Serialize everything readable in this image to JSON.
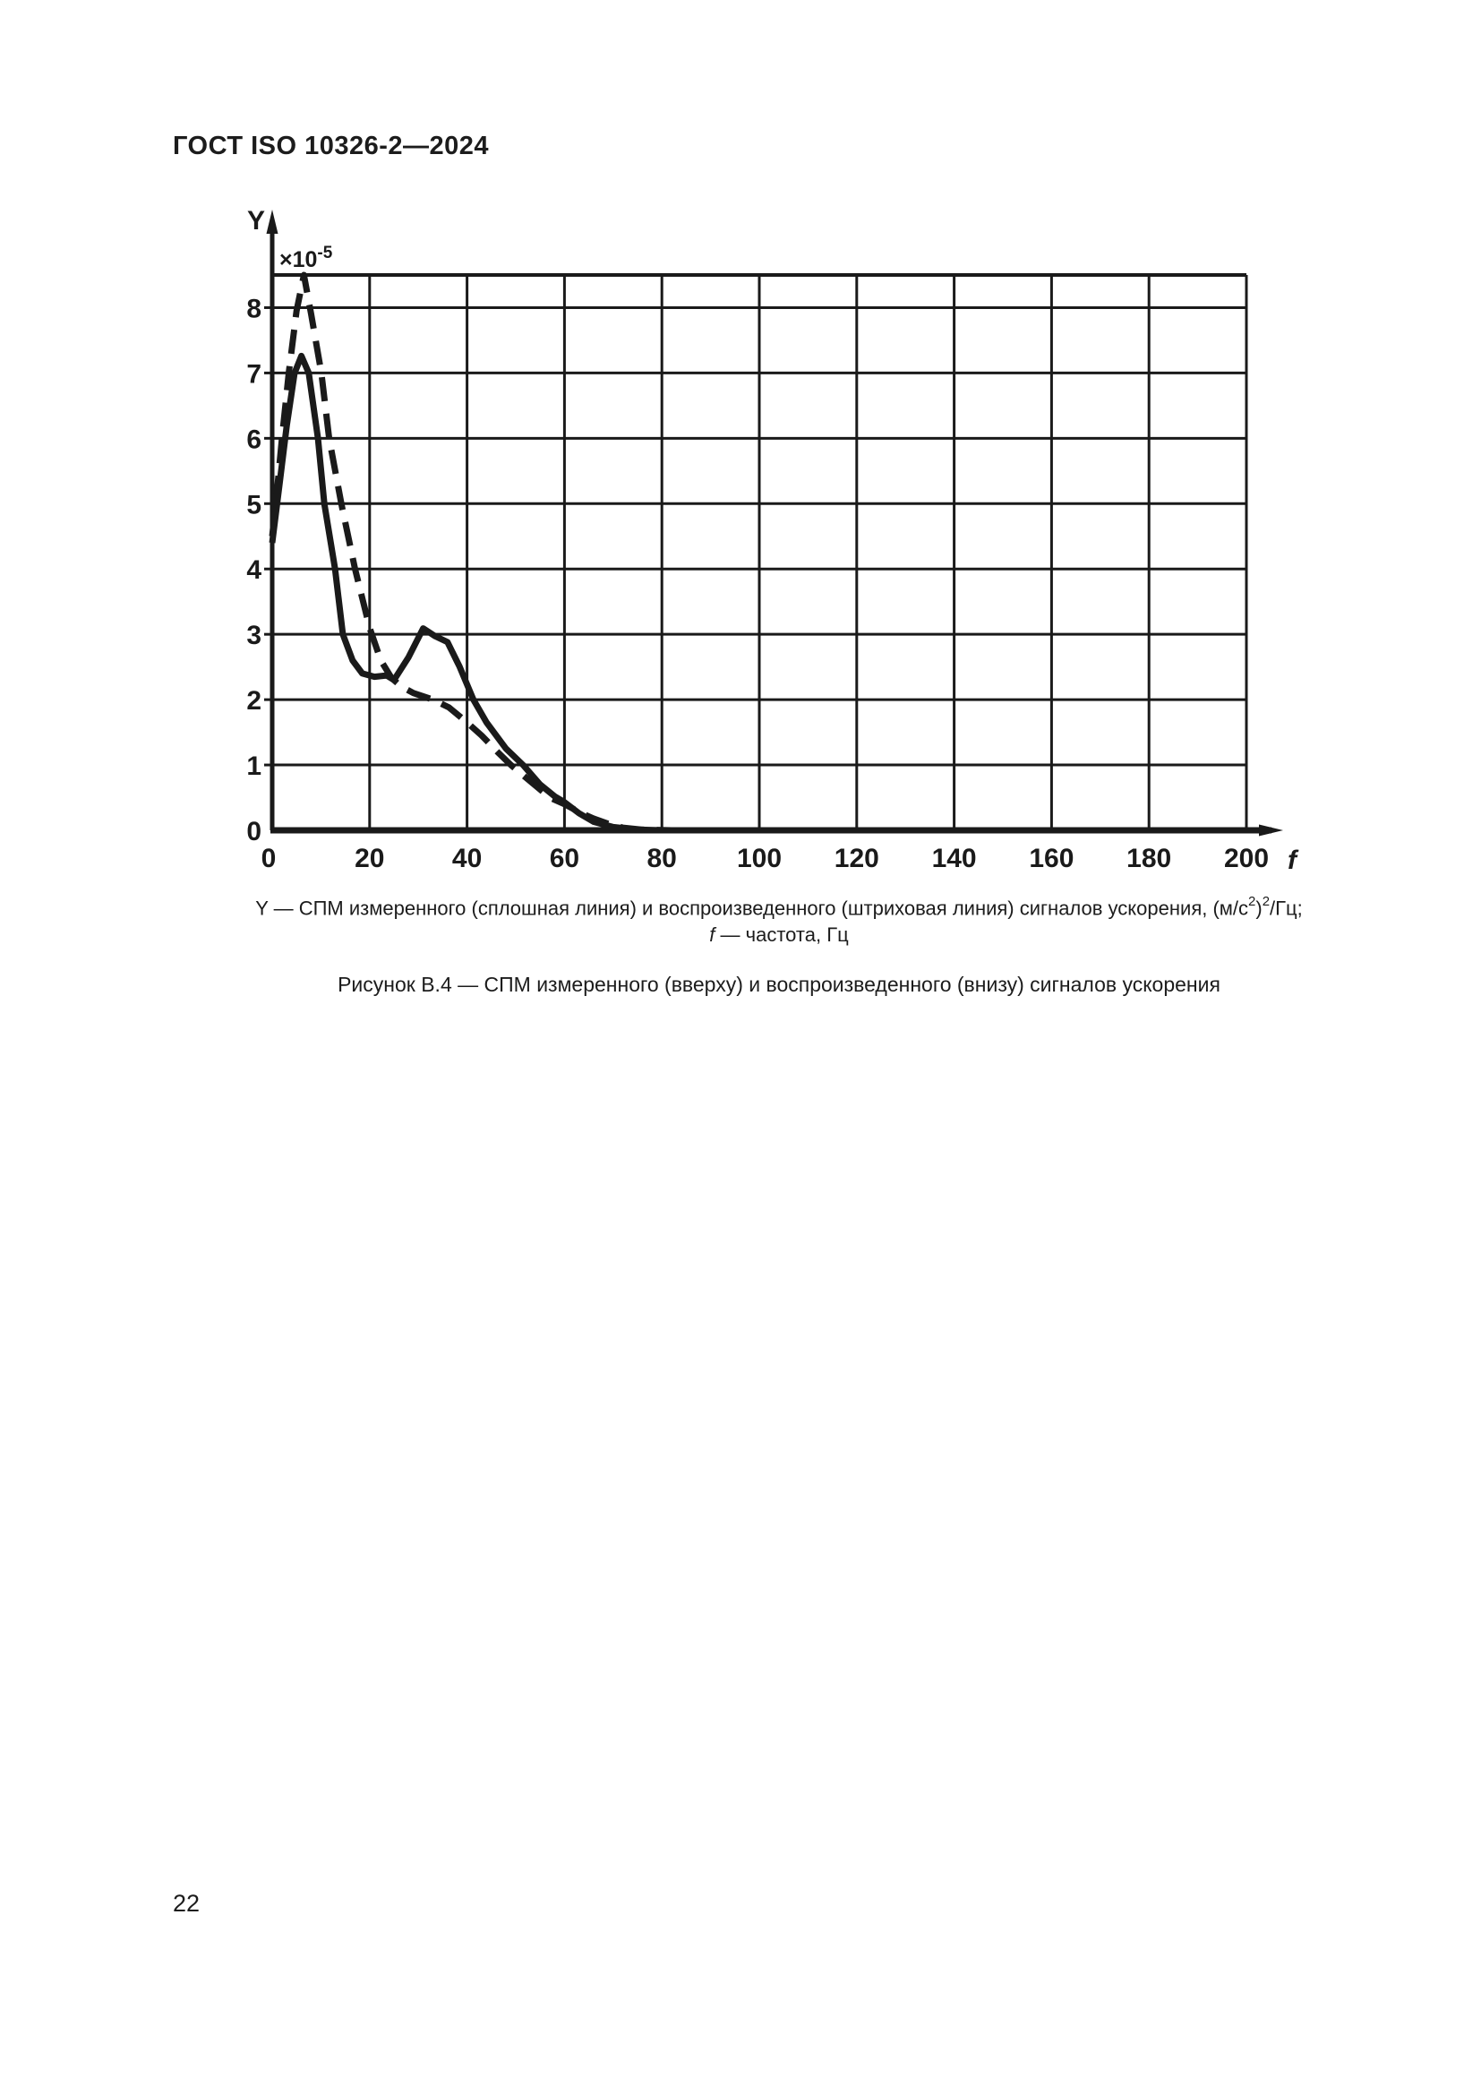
{
  "page": {
    "header": "ГОСТ ISO 10326-2—2024",
    "page_number": "22"
  },
  "chart_data": {
    "type": "line",
    "title": "",
    "xlabel": "f",
    "ylabel": "Y",
    "y_scale_label": {
      "base": "×10",
      "exponent": "-5"
    },
    "xlim": [
      0,
      200
    ],
    "ylim": [
      0,
      8.5
    ],
    "x_ticks": [
      0,
      20,
      40,
      60,
      80,
      100,
      120,
      140,
      160,
      180,
      200
    ],
    "y_ticks": [
      0,
      1,
      2,
      3,
      4,
      5,
      6,
      7,
      8
    ],
    "grid": "on",
    "legend_position": "none",
    "series": [
      {
        "name": "СПМ измеренного сигнала (сплошная линия)",
        "style": "solid",
        "points": [
          [
            0,
            4.4
          ],
          [
            1.5,
            5.3
          ],
          [
            3,
            6.2
          ],
          [
            4.6,
            7.0
          ],
          [
            6,
            7.26
          ],
          [
            7.5,
            7.0
          ],
          [
            9.4,
            6.0
          ],
          [
            10.7,
            5.0
          ],
          [
            12.9,
            4.0
          ],
          [
            14.5,
            3.0
          ],
          [
            16.5,
            2.6
          ],
          [
            18.5,
            2.4
          ],
          [
            21,
            2.35
          ],
          [
            23.5,
            2.37
          ],
          [
            25,
            2.3
          ],
          [
            28,
            2.65
          ],
          [
            31,
            3.09
          ],
          [
            33.5,
            2.97
          ],
          [
            36,
            2.88
          ],
          [
            38.5,
            2.5
          ],
          [
            41.3,
            2.0
          ],
          [
            44,
            1.65
          ],
          [
            48,
            1.25
          ],
          [
            51.5,
            1.0
          ],
          [
            55,
            0.7
          ],
          [
            58,
            0.52
          ],
          [
            60,
            0.43
          ],
          [
            63,
            0.26
          ],
          [
            66,
            0.13
          ],
          [
            70,
            0.05
          ],
          [
            75,
            0.01
          ],
          [
            80,
            0
          ],
          [
            200,
            0
          ]
        ]
      },
      {
        "name": "СПМ воспроизведенного сигнала (штриховая линия)",
        "style": "dashed",
        "points": [
          [
            0,
            4.5
          ],
          [
            1,
            5.2
          ],
          [
            2,
            6.0
          ],
          [
            3.4,
            7.0
          ],
          [
            5,
            7.95
          ],
          [
            6.5,
            8.5
          ],
          [
            8,
            7.9
          ],
          [
            10.1,
            7.0
          ],
          [
            11.7,
            6.0
          ],
          [
            14.2,
            5.0
          ],
          [
            17,
            4.0
          ],
          [
            20,
            3.1
          ],
          [
            22.3,
            2.6
          ],
          [
            24.5,
            2.33
          ],
          [
            26.5,
            2.2
          ],
          [
            29,
            2.1
          ],
          [
            33,
            2.0
          ],
          [
            36.3,
            1.88
          ],
          [
            40,
            1.65
          ],
          [
            43,
            1.45
          ],
          [
            46.5,
            1.18
          ],
          [
            49,
            1.0
          ],
          [
            53,
            0.75
          ],
          [
            57,
            0.5
          ],
          [
            60,
            0.4
          ],
          [
            63.5,
            0.26
          ],
          [
            66,
            0.18
          ],
          [
            69,
            0.1
          ],
          [
            72,
            0.04
          ],
          [
            76,
            0.01
          ],
          [
            82,
            0
          ],
          [
            200,
            0
          ]
        ]
      }
    ]
  },
  "note": {
    "line1": {
      "part1": "Y — СПМ измеренного (сплошная линия) и воспроизведенного (штриховая линия) сигналов ускорения, (м/с",
      "sup1": "2",
      "part2": ")",
      "sup2": "2",
      "part3": "/Гц;"
    },
    "line2": {
      "symbol": "f",
      "text": " — частота, Гц"
    }
  },
  "figure_caption": "Рисунок В.4 — СПМ измеренного (вверху) и воспроизведенного (внизу) сигналов ускорения"
}
